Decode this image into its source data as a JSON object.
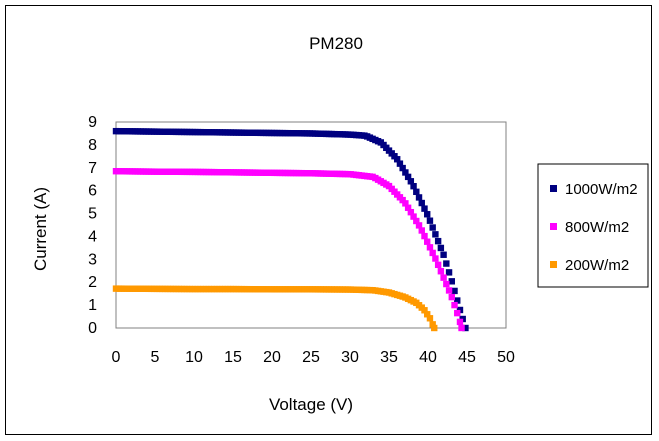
{
  "chart_data": {
    "type": "scatter",
    "title": "PM280",
    "xlabel": "Voltage (V)",
    "ylabel": "Current (A)",
    "xlim": [
      0,
      50
    ],
    "ylim": [
      0,
      9
    ],
    "xticks": [
      "0",
      "5",
      "10",
      "15",
      "20",
      "25",
      "30",
      "35",
      "40",
      "45",
      "50"
    ],
    "yticks": [
      "0",
      "1",
      "2",
      "3",
      "4",
      "5",
      "6",
      "7",
      "8",
      "9"
    ],
    "grid": false,
    "legend_position": "right",
    "series": [
      {
        "name": "1000W/m2",
        "color": "#000080",
        "points": [
          [
            0,
            8.6
          ],
          [
            5,
            8.58
          ],
          [
            10,
            8.56
          ],
          [
            15,
            8.54
          ],
          [
            20,
            8.52
          ],
          [
            25,
            8.5
          ],
          [
            30,
            8.45
          ],
          [
            32,
            8.4
          ],
          [
            34,
            8.1
          ],
          [
            36,
            7.4
          ],
          [
            38,
            6.3
          ],
          [
            40,
            4.9
          ],
          [
            42,
            3.2
          ],
          [
            43,
            2.1
          ],
          [
            44,
            0.9
          ],
          [
            44.8,
            0
          ]
        ]
      },
      {
        "name": "800W/m2",
        "color": "#FF00FF",
        "points": [
          [
            0,
            6.85
          ],
          [
            5,
            6.83
          ],
          [
            10,
            6.82
          ],
          [
            15,
            6.8
          ],
          [
            20,
            6.78
          ],
          [
            25,
            6.76
          ],
          [
            30,
            6.72
          ],
          [
            33,
            6.6
          ],
          [
            35,
            6.2
          ],
          [
            37,
            5.5
          ],
          [
            39,
            4.4
          ],
          [
            41,
            3.0
          ],
          [
            43,
            1.4
          ],
          [
            44,
            0.4
          ],
          [
            44.3,
            0
          ]
        ]
      },
      {
        "name": "200W/m2",
        "color": "#FF9900",
        "points": [
          [
            0,
            1.72
          ],
          [
            5,
            1.71
          ],
          [
            10,
            1.7
          ],
          [
            15,
            1.7
          ],
          [
            20,
            1.69
          ],
          [
            25,
            1.69
          ],
          [
            30,
            1.68
          ],
          [
            33,
            1.65
          ],
          [
            35,
            1.55
          ],
          [
            37,
            1.35
          ],
          [
            38.5,
            1.1
          ],
          [
            39.5,
            0.8
          ],
          [
            40.3,
            0.4
          ],
          [
            40.8,
            0
          ]
        ]
      }
    ]
  }
}
